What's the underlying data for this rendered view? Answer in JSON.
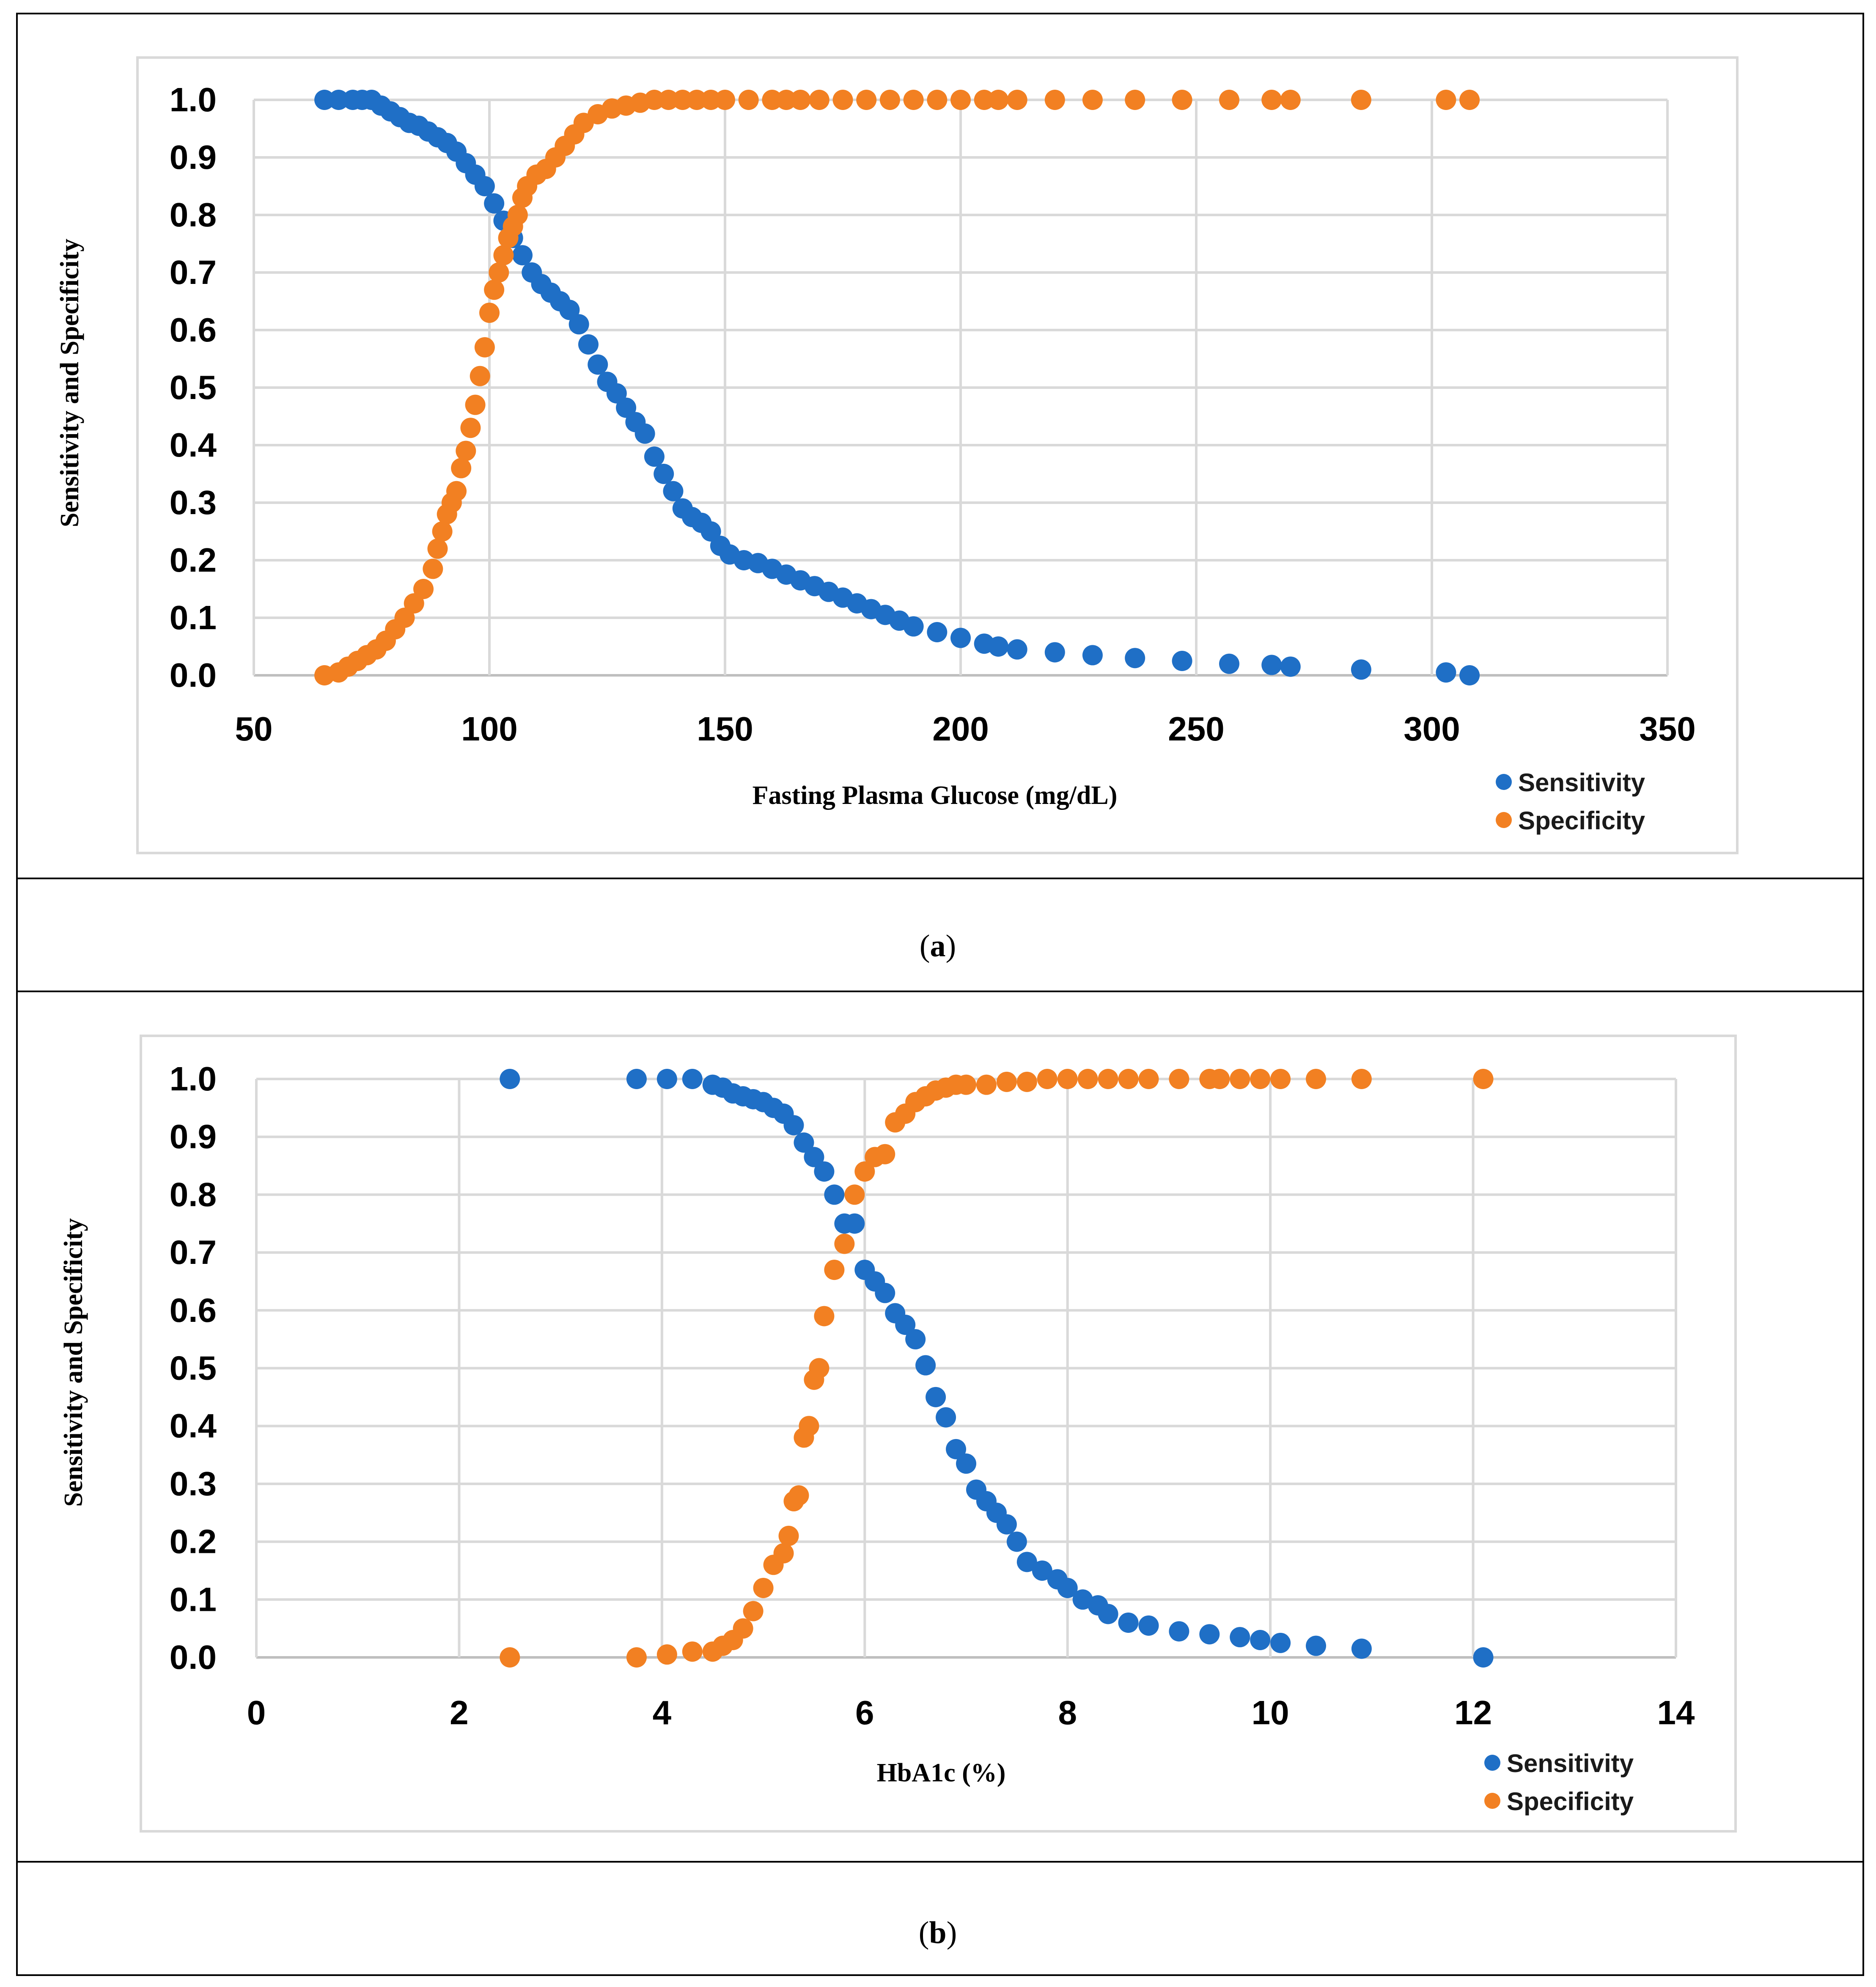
{
  "figure": {
    "panel_a_caption": "a",
    "panel_b_caption": "b"
  },
  "colors": {
    "sensitivity": "#1f6fc6",
    "specificity": "#f28022",
    "grid": "#d9d9d9",
    "axis": "#bfbfbf",
    "border": "#000000",
    "chart_border": "#d9d9d9"
  },
  "chart_data": [
    {
      "id": "panel-a",
      "type": "scatter",
      "title": "",
      "xlabel": "Fasting Plasma Glucose (mg/dL)",
      "ylabel": "Sensitivity and Specificity",
      "xlim": [
        50,
        350
      ],
      "ylim": [
        0,
        1
      ],
      "xticks": [
        50,
        100,
        150,
        200,
        250,
        300,
        350
      ],
      "yticks": [
        0,
        0.1,
        0.2,
        0.3,
        0.4,
        0.5,
        0.6,
        0.7,
        0.8,
        0.9,
        1.0
      ],
      "xtick_labels": [
        "50",
        "100",
        "150",
        "200",
        "250",
        "300",
        "350"
      ],
      "ytick_labels": [
        "0.0",
        "0.1",
        "0.2",
        "0.3",
        "0.4",
        "0.5",
        "0.6",
        "0.7",
        "0.8",
        "0.9",
        "1.0"
      ],
      "grid": true,
      "legend_position": "bottom-right",
      "series": [
        {
          "name": "Sensitivity",
          "points": [
            [
              65,
              1.0
            ],
            [
              68,
              1.0
            ],
            [
              71,
              1.0
            ],
            [
              73,
              1.0
            ],
            [
              75,
              1.0
            ],
            [
              77,
              0.99
            ],
            [
              79,
              0.98
            ],
            [
              81,
              0.97
            ],
            [
              83,
              0.96
            ],
            [
              85,
              0.955
            ],
            [
              87,
              0.945
            ],
            [
              89,
              0.935
            ],
            [
              91,
              0.925
            ],
            [
              93,
              0.91
            ],
            [
              95,
              0.89
            ],
            [
              97,
              0.87
            ],
            [
              99,
              0.85
            ],
            [
              101,
              0.82
            ],
            [
              103,
              0.79
            ],
            [
              105,
              0.76
            ],
            [
              107,
              0.73
            ],
            [
              109,
              0.7
            ],
            [
              111,
              0.68
            ],
            [
              113,
              0.665
            ],
            [
              115,
              0.65
            ],
            [
              117,
              0.635
            ],
            [
              119,
              0.61
            ],
            [
              121,
              0.575
            ],
            [
              123,
              0.54
            ],
            [
              125,
              0.51
            ],
            [
              127,
              0.49
            ],
            [
              129,
              0.465
            ],
            [
              131,
              0.44
            ],
            [
              133,
              0.42
            ],
            [
              135,
              0.38
            ],
            [
              137,
              0.35
            ],
            [
              139,
              0.32
            ],
            [
              141,
              0.29
            ],
            [
              143,
              0.275
            ],
            [
              145,
              0.265
            ],
            [
              147,
              0.25
            ],
            [
              149,
              0.225
            ],
            [
              151,
              0.21
            ],
            [
              154,
              0.2
            ],
            [
              157,
              0.195
            ],
            [
              160,
              0.185
            ],
            [
              163,
              0.175
            ],
            [
              166,
              0.165
            ],
            [
              169,
              0.155
            ],
            [
              172,
              0.145
            ],
            [
              175,
              0.135
            ],
            [
              178,
              0.125
            ],
            [
              181,
              0.115
            ],
            [
              184,
              0.105
            ],
            [
              187,
              0.095
            ],
            [
              190,
              0.085
            ],
            [
              195,
              0.075
            ],
            [
              200,
              0.065
            ],
            [
              205,
              0.055
            ],
            [
              208,
              0.05
            ],
            [
              212,
              0.045
            ],
            [
              220,
              0.04
            ],
            [
              228,
              0.035
            ],
            [
              237,
              0.03
            ],
            [
              247,
              0.025
            ],
            [
              257,
              0.02
            ],
            [
              266,
              0.018
            ],
            [
              270,
              0.015
            ],
            [
              285,
              0.01
            ],
            [
              303,
              0.005
            ],
            [
              308,
              0.0
            ]
          ]
        },
        {
          "name": "Specificity",
          "points": [
            [
              65,
              0.0
            ],
            [
              68,
              0.005
            ],
            [
              70,
              0.015
            ],
            [
              72,
              0.025
            ],
            [
              74,
              0.035
            ],
            [
              76,
              0.045
            ],
            [
              78,
              0.06
            ],
            [
              80,
              0.08
            ],
            [
              82,
              0.1
            ],
            [
              84,
              0.125
            ],
            [
              86,
              0.15
            ],
            [
              88,
              0.185
            ],
            [
              89,
              0.22
            ],
            [
              90,
              0.25
            ],
            [
              91,
              0.28
            ],
            [
              92,
              0.3
            ],
            [
              93,
              0.32
            ],
            [
              94,
              0.36
            ],
            [
              95,
              0.39
            ],
            [
              96,
              0.43
            ],
            [
              97,
              0.47
            ],
            [
              98,
              0.52
            ],
            [
              99,
              0.57
            ],
            [
              100,
              0.63
            ],
            [
              101,
              0.67
            ],
            [
              102,
              0.7
            ],
            [
              103,
              0.73
            ],
            [
              104,
              0.76
            ],
            [
              105,
              0.78
            ],
            [
              106,
              0.8
            ],
            [
              107,
              0.83
            ],
            [
              108,
              0.85
            ],
            [
              110,
              0.87
            ],
            [
              112,
              0.88
            ],
            [
              114,
              0.9
            ],
            [
              116,
              0.92
            ],
            [
              118,
              0.94
            ],
            [
              120,
              0.96
            ],
            [
              123,
              0.975
            ],
            [
              126,
              0.985
            ],
            [
              129,
              0.99
            ],
            [
              132,
              0.995
            ],
            [
              135,
              1.0
            ],
            [
              138,
              1.0
            ],
            [
              141,
              1.0
            ],
            [
              144,
              1.0
            ],
            [
              147,
              1.0
            ],
            [
              150,
              1.0
            ],
            [
              155,
              1.0
            ],
            [
              160,
              1.0
            ],
            [
              163,
              1.0
            ],
            [
              166,
              1.0
            ],
            [
              170,
              1.0
            ],
            [
              175,
              1.0
            ],
            [
              180,
              1.0
            ],
            [
              185,
              1.0
            ],
            [
              190,
              1.0
            ],
            [
              195,
              1.0
            ],
            [
              200,
              1.0
            ],
            [
              205,
              1.0
            ],
            [
              208,
              1.0
            ],
            [
              212,
              1.0
            ],
            [
              220,
              1.0
            ],
            [
              228,
              1.0
            ],
            [
              237,
              1.0
            ],
            [
              247,
              1.0
            ],
            [
              257,
              1.0
            ],
            [
              266,
              1.0
            ],
            [
              270,
              1.0
            ],
            [
              285,
              1.0
            ],
            [
              303,
              1.0
            ],
            [
              308,
              1.0
            ]
          ]
        }
      ]
    },
    {
      "id": "panel-b",
      "type": "scatter",
      "title": "",
      "xlabel": "HbA1c (%)",
      "ylabel": "Sensitivity and Specificity",
      "xlim": [
        0,
        14
      ],
      "ylim": [
        0,
        1
      ],
      "xticks": [
        0,
        2,
        4,
        6,
        8,
        10,
        12,
        14
      ],
      "yticks": [
        0,
        0.1,
        0.2,
        0.3,
        0.4,
        0.5,
        0.6,
        0.7,
        0.8,
        0.9,
        1.0
      ],
      "xtick_labels": [
        "0",
        "2",
        "4",
        "6",
        "8",
        "10",
        "12",
        "14"
      ],
      "ytick_labels": [
        "0.0",
        "0.1",
        "0.2",
        "0.3",
        "0.4",
        "0.5",
        "0.6",
        "0.7",
        "0.8",
        "0.9",
        "1.0"
      ],
      "grid": true,
      "legend_position": "bottom-right",
      "series": [
        {
          "name": "Sensitivity",
          "points": [
            [
              2.5,
              1.0
            ],
            [
              3.75,
              1.0
            ],
            [
              4.05,
              1.0
            ],
            [
              4.3,
              1.0
            ],
            [
              4.5,
              0.99
            ],
            [
              4.6,
              0.985
            ],
            [
              4.7,
              0.975
            ],
            [
              4.8,
              0.97
            ],
            [
              4.9,
              0.965
            ],
            [
              5.0,
              0.96
            ],
            [
              5.1,
              0.95
            ],
            [
              5.2,
              0.94
            ],
            [
              5.3,
              0.92
            ],
            [
              5.4,
              0.89
            ],
            [
              5.5,
              0.865
            ],
            [
              5.6,
              0.84
            ],
            [
              5.7,
              0.8
            ],
            [
              5.8,
              0.75
            ],
            [
              5.9,
              0.75
            ],
            [
              6.0,
              0.67
            ],
            [
              6.1,
              0.65
            ],
            [
              6.2,
              0.63
            ],
            [
              6.3,
              0.595
            ],
            [
              6.4,
              0.575
            ],
            [
              6.5,
              0.55
            ],
            [
              6.6,
              0.505
            ],
            [
              6.7,
              0.45
            ],
            [
              6.8,
              0.415
            ],
            [
              6.9,
              0.36
            ],
            [
              7.0,
              0.335
            ],
            [
              7.1,
              0.29
            ],
            [
              7.2,
              0.27
            ],
            [
              7.3,
              0.25
            ],
            [
              7.4,
              0.23
            ],
            [
              7.5,
              0.2
            ],
            [
              7.6,
              0.165
            ],
            [
              7.75,
              0.15
            ],
            [
              7.9,
              0.135
            ],
            [
              8.0,
              0.12
            ],
            [
              8.15,
              0.1
            ],
            [
              8.3,
              0.09
            ],
            [
              8.4,
              0.075
            ],
            [
              8.6,
              0.06
            ],
            [
              8.8,
              0.055
            ],
            [
              9.1,
              0.045
            ],
            [
              9.4,
              0.04
            ],
            [
              9.7,
              0.035
            ],
            [
              9.9,
              0.03
            ],
            [
              10.1,
              0.025
            ],
            [
              10.45,
              0.02
            ],
            [
              10.9,
              0.015
            ],
            [
              12.1,
              0.0
            ]
          ]
        },
        {
          "name": "Specificity",
          "points": [
            [
              2.5,
              0.0
            ],
            [
              3.75,
              0.0
            ],
            [
              4.05,
              0.005
            ],
            [
              4.3,
              0.01
            ],
            [
              4.5,
              0.01
            ],
            [
              4.6,
              0.02
            ],
            [
              4.7,
              0.03
            ],
            [
              4.8,
              0.05
            ],
            [
              4.9,
              0.08
            ],
            [
              5.0,
              0.12
            ],
            [
              5.1,
              0.16
            ],
            [
              5.2,
              0.18
            ],
            [
              5.25,
              0.21
            ],
            [
              5.3,
              0.27
            ],
            [
              5.35,
              0.28
            ],
            [
              5.4,
              0.38
            ],
            [
              5.45,
              0.4
            ],
            [
              5.5,
              0.48
            ],
            [
              5.55,
              0.5
            ],
            [
              5.6,
              0.59
            ],
            [
              5.7,
              0.67
            ],
            [
              5.8,
              0.715
            ],
            [
              5.9,
              0.8
            ],
            [
              6.0,
              0.84
            ],
            [
              6.1,
              0.865
            ],
            [
              6.2,
              0.87
            ],
            [
              6.3,
              0.925
            ],
            [
              6.4,
              0.94
            ],
            [
              6.5,
              0.96
            ],
            [
              6.6,
              0.97
            ],
            [
              6.7,
              0.98
            ],
            [
              6.8,
              0.985
            ],
            [
              6.9,
              0.99
            ],
            [
              7.0,
              0.99
            ],
            [
              7.2,
              0.99
            ],
            [
              7.4,
              0.995
            ],
            [
              7.6,
              0.995
            ],
            [
              7.8,
              1.0
            ],
            [
              8.0,
              1.0
            ],
            [
              8.2,
              1.0
            ],
            [
              8.4,
              1.0
            ],
            [
              8.6,
              1.0
            ],
            [
              8.8,
              1.0
            ],
            [
              9.1,
              1.0
            ],
            [
              9.4,
              1.0
            ],
            [
              9.5,
              1.0
            ],
            [
              9.7,
              1.0
            ],
            [
              9.9,
              1.0
            ],
            [
              10.1,
              1.0
            ],
            [
              10.45,
              1.0
            ],
            [
              10.9,
              1.0
            ],
            [
              12.1,
              1.0
            ]
          ]
        }
      ]
    }
  ]
}
